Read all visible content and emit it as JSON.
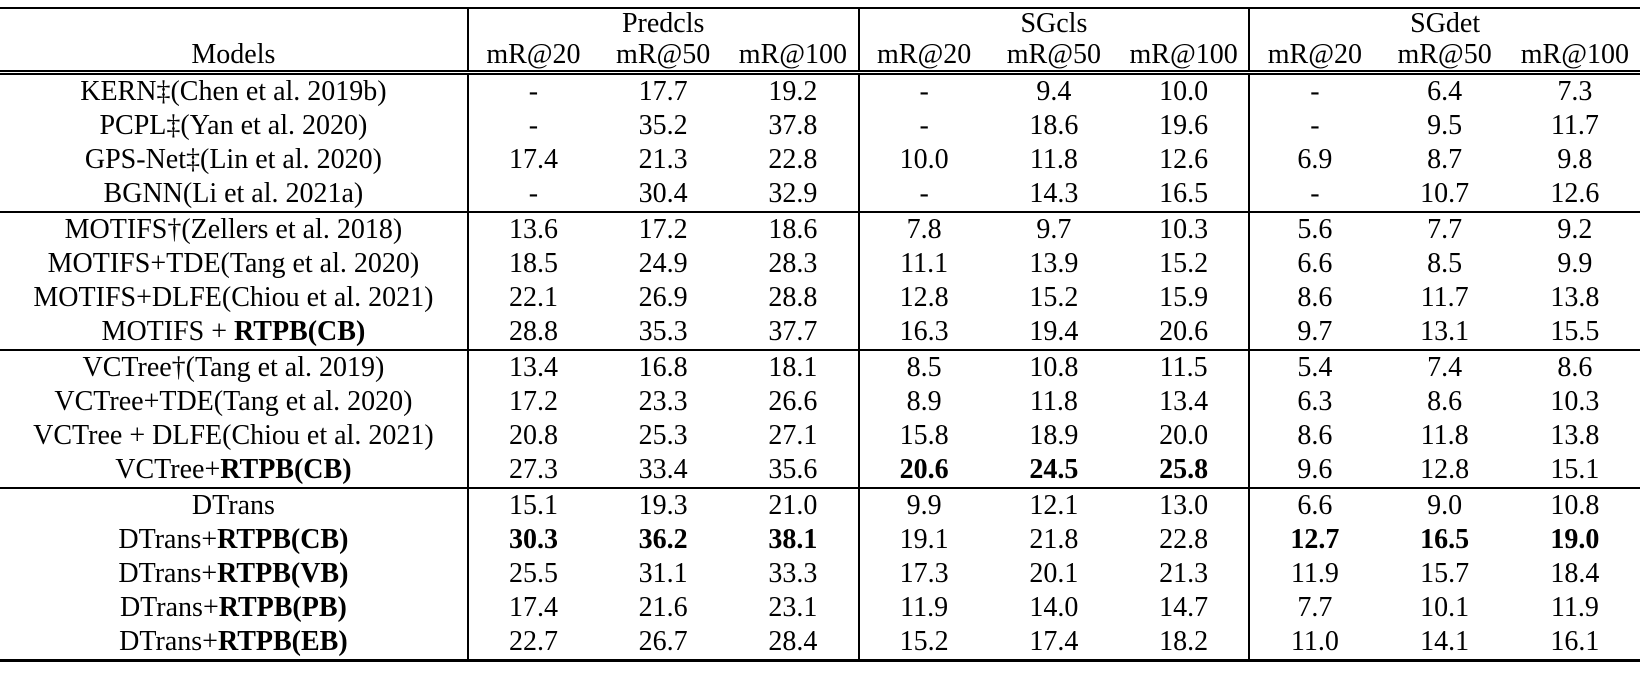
{
  "page": {
    "background_color": "#ffffff",
    "text_color": "#000000"
  },
  "table": {
    "models_header": "Models",
    "groups": [
      "Predcls",
      "SGcls",
      "SGdet"
    ],
    "metrics": [
      "mR@20",
      "mR@50",
      "mR@100"
    ],
    "blocks": [
      {
        "rows": [
          {
            "model_prefix": "KERN‡(Chen et al. 2019b)",
            "model_bold": "",
            "values": [
              "-",
              "17.7",
              "19.2",
              "-",
              "9.4",
              "10.0",
              "-",
              "6.4",
              "7.3"
            ],
            "bold_mask": [
              0,
              0,
              0,
              0,
              0,
              0,
              0,
              0,
              0
            ]
          },
          {
            "model_prefix": "PCPL‡(Yan et al. 2020)",
            "model_bold": "",
            "values": [
              "-",
              "35.2",
              "37.8",
              "-",
              "18.6",
              "19.6",
              "-",
              "9.5",
              "11.7"
            ],
            "bold_mask": [
              0,
              0,
              0,
              0,
              0,
              0,
              0,
              0,
              0
            ]
          },
          {
            "model_prefix": "GPS-Net‡(Lin et al. 2020)",
            "model_bold": "",
            "values": [
              "17.4",
              "21.3",
              "22.8",
              "10.0",
              "11.8",
              "12.6",
              "6.9",
              "8.7",
              "9.8"
            ],
            "bold_mask": [
              0,
              0,
              0,
              0,
              0,
              0,
              0,
              0,
              0
            ]
          },
          {
            "model_prefix": "BGNN(Li et al. 2021a)",
            "model_bold": "",
            "values": [
              "-",
              "30.4",
              "32.9",
              "-",
              "14.3",
              "16.5",
              "-",
              "10.7",
              "12.6"
            ],
            "bold_mask": [
              0,
              0,
              0,
              0,
              0,
              0,
              0,
              0,
              0
            ]
          }
        ]
      },
      {
        "rows": [
          {
            "model_prefix": "MOTIFS†(Zellers et al. 2018)",
            "model_bold": "",
            "values": [
              "13.6",
              "17.2",
              "18.6",
              "7.8",
              "9.7",
              "10.3",
              "5.6",
              "7.7",
              "9.2"
            ],
            "bold_mask": [
              0,
              0,
              0,
              0,
              0,
              0,
              0,
              0,
              0
            ]
          },
          {
            "model_prefix": "MOTIFS+TDE(Tang et al. 2020)",
            "model_bold": "",
            "values": [
              "18.5",
              "24.9",
              "28.3",
              "11.1",
              "13.9",
              "15.2",
              "6.6",
              "8.5",
              "9.9"
            ],
            "bold_mask": [
              0,
              0,
              0,
              0,
              0,
              0,
              0,
              0,
              0
            ]
          },
          {
            "model_prefix": "MOTIFS+DLFE(Chiou et al. 2021)",
            "model_bold": "",
            "values": [
              "22.1",
              "26.9",
              "28.8",
              "12.8",
              "15.2",
              "15.9",
              "8.6",
              "11.7",
              "13.8"
            ],
            "bold_mask": [
              0,
              0,
              0,
              0,
              0,
              0,
              0,
              0,
              0
            ]
          },
          {
            "model_prefix": "MOTIFS + ",
            "model_bold": "RTPB(CB)",
            "values": [
              "28.8",
              "35.3",
              "37.7",
              "16.3",
              "19.4",
              "20.6",
              "9.7",
              "13.1",
              "15.5"
            ],
            "bold_mask": [
              0,
              0,
              0,
              0,
              0,
              0,
              0,
              0,
              0
            ]
          }
        ]
      },
      {
        "rows": [
          {
            "model_prefix": "VCTree†(Tang et al. 2019)",
            "model_bold": "",
            "values": [
              "13.4",
              "16.8",
              "18.1",
              "8.5",
              "10.8",
              "11.5",
              "5.4",
              "7.4",
              "8.6"
            ],
            "bold_mask": [
              0,
              0,
              0,
              0,
              0,
              0,
              0,
              0,
              0
            ]
          },
          {
            "model_prefix": "VCTree+TDE(Tang et al. 2020)",
            "model_bold": "",
            "values": [
              "17.2",
              "23.3",
              "26.6",
              "8.9",
              "11.8",
              "13.4",
              "6.3",
              "8.6",
              "10.3"
            ],
            "bold_mask": [
              0,
              0,
              0,
              0,
              0,
              0,
              0,
              0,
              0
            ]
          },
          {
            "model_prefix": "VCTree + DLFE(Chiou et al. 2021)",
            "model_bold": "",
            "values": [
              "20.8",
              "25.3",
              "27.1",
              "15.8",
              "18.9",
              "20.0",
              "8.6",
              "11.8",
              "13.8"
            ],
            "bold_mask": [
              0,
              0,
              0,
              0,
              0,
              0,
              0,
              0,
              0
            ]
          },
          {
            "model_prefix": "VCTree+",
            "model_bold": "RTPB(CB)",
            "values": [
              "27.3",
              "33.4",
              "35.6",
              "20.6",
              "24.5",
              "25.8",
              "9.6",
              "12.8",
              "15.1"
            ],
            "bold_mask": [
              0,
              0,
              0,
              1,
              1,
              1,
              0,
              0,
              0
            ]
          }
        ]
      },
      {
        "rows": [
          {
            "model_prefix": "DTrans",
            "model_bold": "",
            "values": [
              "15.1",
              "19.3",
              "21.0",
              "9.9",
              "12.1",
              "13.0",
              "6.6",
              "9.0",
              "10.8"
            ],
            "bold_mask": [
              0,
              0,
              0,
              0,
              0,
              0,
              0,
              0,
              0
            ]
          },
          {
            "model_prefix": "DTrans+",
            "model_bold": "RTPB(CB)",
            "values": [
              "30.3",
              "36.2",
              "38.1",
              "19.1",
              "21.8",
              "22.8",
              "12.7",
              "16.5",
              "19.0"
            ],
            "bold_mask": [
              1,
              1,
              1,
              0,
              0,
              0,
              1,
              1,
              1
            ]
          },
          {
            "model_prefix": "DTrans+",
            "model_bold": "RTPB(VB)",
            "values": [
              "25.5",
              "31.1",
              "33.3",
              "17.3",
              "20.1",
              "21.3",
              "11.9",
              "15.7",
              "18.4"
            ],
            "bold_mask": [
              0,
              0,
              0,
              0,
              0,
              0,
              0,
              0,
              0
            ]
          },
          {
            "model_prefix": "DTrans+",
            "model_bold": "RTPB(PB)",
            "values": [
              "17.4",
              "21.6",
              "23.1",
              "11.9",
              "14.0",
              "14.7",
              "7.7",
              "10.1",
              "11.9"
            ],
            "bold_mask": [
              0,
              0,
              0,
              0,
              0,
              0,
              0,
              0,
              0
            ]
          },
          {
            "model_prefix": "DTrans+",
            "model_bold": "RTPB(EB)",
            "values": [
              "22.7",
              "26.7",
              "28.4",
              "15.2",
              "17.4",
              "18.2",
              "11.0",
              "14.1",
              "16.1"
            ],
            "bold_mask": [
              0,
              0,
              0,
              0,
              0,
              0,
              0,
              0,
              0
            ]
          }
        ]
      }
    ]
  }
}
